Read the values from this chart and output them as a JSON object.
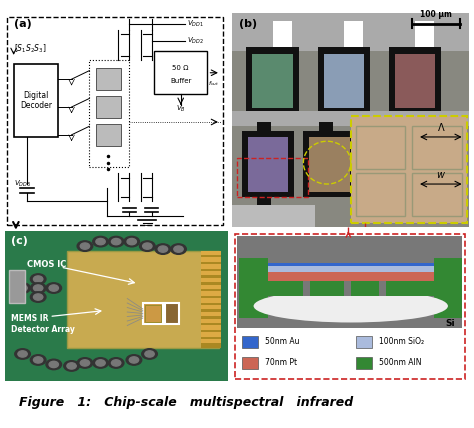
{
  "figure_title": "Figure   1:   Chip-scale   multispectral   infrared",
  "panel_a_label": "(a)",
  "panel_b_label": "(b)",
  "panel_c_label": "(c)",
  "bg_color": "#ffffff",
  "colors": {
    "green_sensor": "#5a8a6e",
    "blue_sensor": "#8a9db5",
    "red_sensor": "#8a5a5a",
    "purple_sensor": "#7a6a9a",
    "tan2_sensor": "#9a8060",
    "tan_sensor": "#c8aa88",
    "sensor_black": "#1a1a1a",
    "panel_b_bg": "#888880",
    "panel_b_strip": "#aaaaaa",
    "panel_b_bottom": "#aaaaaa",
    "au_blue": "#3366cc",
    "sio2_blue": "#aabbdd",
    "pt_red": "#cc6655",
    "aln_green": "#338833",
    "pcb_green": "#2a7a4a",
    "xs_gray": "#787878",
    "si_white": "#eeeeee"
  },
  "legend_items": [
    {
      "label": "50nm Au",
      "color": "#3366cc"
    },
    {
      "label": "100nm SiO₂",
      "color": "#aabbdd"
    },
    {
      "label": "70nm Pt",
      "color": "#cc6655"
    },
    {
      "label": "500nm AlN",
      "color": "#338833"
    }
  ]
}
